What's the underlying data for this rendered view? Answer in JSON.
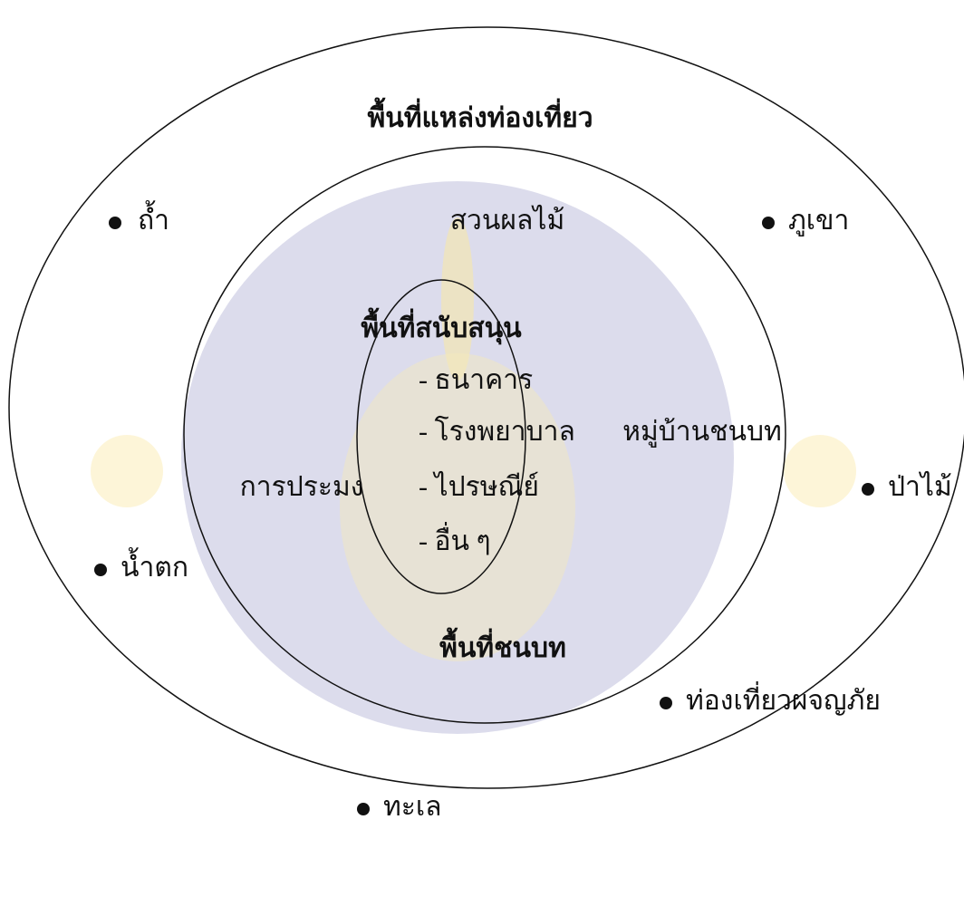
{
  "outer": {
    "title": "พื้นที่แหล่งท่องเที่ยว",
    "points": [
      "ถ้ำ",
      "ภูเขา",
      "ป่าไม้",
      "น้ำตก",
      "ท่องเที่ยวผจญภัย",
      "ทะเล"
    ]
  },
  "middle": {
    "title": "พื้นที่ชนบท",
    "labels": [
      "สวนผลไม้",
      "หมู่บ้านชนบท",
      "การประมง"
    ]
  },
  "inner": {
    "title": "พื้นที่สนับสนุน",
    "items": [
      "- ธนาคาร",
      "- โรงพยาบาล",
      "- ไปรษณีย์",
      "- อื่น ๆ"
    ]
  }
}
